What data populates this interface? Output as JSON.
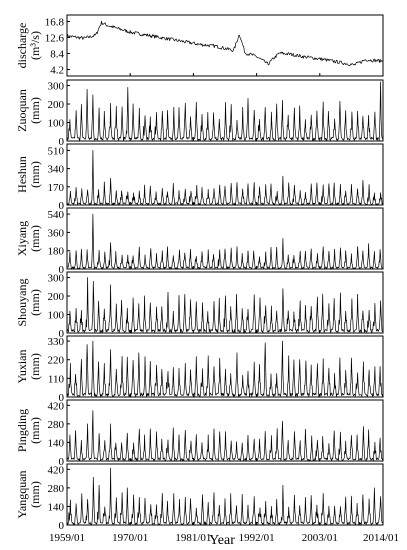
{
  "chart_data": {
    "type": "line",
    "xlabel": "Year",
    "x_range": [
      "1959/01",
      "2014/01"
    ],
    "x_ticks": [
      "1959/01",
      "1970/01",
      "1981/01",
      "1992/01",
      "2003/01",
      "2014/01"
    ],
    "panels": [
      {
        "name": "discharge-panel",
        "ylabel": [
          "discharge",
          "(m³/s)"
        ],
        "yticks": [
          "16.8",
          "12.6",
          "8.4",
          "4.2"
        ],
        "ylim": [
          2.5,
          18.5
        ],
        "approx_series": {
          "kind": "trend",
          "x": [
            1959,
            1962,
            1964,
            1965,
            1966,
            1968,
            1970,
            1973,
            1976,
            1979,
            1982,
            1985,
            1988,
            1989,
            1990,
            1992,
            1994,
            1995,
            1996,
            1998,
            2000,
            2003,
            2006,
            2009,
            2011,
            2014
          ],
          "y": [
            13.0,
            12.4,
            13.2,
            16.5,
            15.8,
            14.9,
            14.0,
            13.2,
            12.4,
            11.6,
            10.8,
            10.3,
            9.2,
            13.5,
            8.6,
            7.6,
            5.6,
            7.2,
            8.5,
            8.2,
            7.6,
            7.0,
            6.2,
            5.4,
            6.8,
            6.4
          ]
        }
      },
      {
        "name": "zuoquan-panel",
        "ylabel": [
          "Zuoquan",
          "(mm)"
        ],
        "yticks": [
          "300",
          "200",
          "100",
          "0"
        ],
        "ylim": [
          0,
          330
        ],
        "approx_series": {
          "kind": "monthly",
          "base_peak": 150,
          "spikes": [
            [
              1962,
              280
            ],
            [
              1963,
              250
            ],
            [
              1969,
              290
            ],
            [
              1981,
              210
            ],
            [
              1990,
              230
            ],
            [
              1996,
              220
            ],
            [
              2013,
              320
            ]
          ]
        }
      },
      {
        "name": "heshun-panel",
        "ylabel": [
          "Heshun",
          "(mm)"
        ],
        "yticks": [
          "510",
          "340",
          "170",
          "0"
        ],
        "ylim": [
          0,
          570
        ],
        "approx_series": {
          "kind": "monthly",
          "base_peak": 150,
          "spikes": [
            [
              1963,
              510
            ],
            [
              1966,
              250
            ],
            [
              1988,
              210
            ],
            [
              1996,
              270
            ],
            [
              2010,
              230
            ]
          ]
        }
      },
      {
        "name": "xiyang-panel",
        "ylabel": [
          "Xiyang",
          "(mm)"
        ],
        "yticks": [
          "540",
          "360",
          "180",
          "0"
        ],
        "ylim": [
          0,
          600
        ],
        "approx_series": {
          "kind": "monthly",
          "base_peak": 160,
          "spikes": [
            [
              1963,
              540
            ],
            [
              1966,
              260
            ],
            [
              1988,
              220
            ],
            [
              1996,
              300
            ],
            [
              2011,
              250
            ]
          ]
        }
      },
      {
        "name": "shouyang-panel",
        "ylabel": [
          "Shouyang",
          "(mm)"
        ],
        "yticks": [
          "300",
          "200",
          "100",
          "0"
        ],
        "ylim": [
          0,
          330
        ],
        "approx_series": {
          "kind": "monthly",
          "base_peak": 150,
          "spikes": [
            [
              1962,
              300
            ],
            [
              1963,
              280
            ],
            [
              1966,
              260
            ],
            [
              1976,
              220
            ],
            [
              1988,
              210
            ],
            [
              1996,
              240
            ],
            [
              2009,
              210
            ]
          ]
        }
      },
      {
        "name": "yuxian-panel",
        "ylabel": [
          "Yuxian",
          "(mm)"
        ],
        "yticks": [
          "330",
          "220",
          "110",
          "0"
        ],
        "ylim": [
          0,
          360
        ],
        "approx_series": {
          "kind": "monthly",
          "base_peak": 170,
          "spikes": [
            [
              1962,
              310
            ],
            [
              1963,
              330
            ],
            [
              1966,
              280
            ],
            [
              1971,
              260
            ],
            [
              1988,
              260
            ],
            [
              1993,
              320
            ],
            [
              1996,
              330
            ]
          ]
        }
      },
      {
        "name": "pingding-panel",
        "ylabel": [
          "Pingding",
          "(mm)"
        ],
        "yticks": [
          "420",
          "280",
          "140",
          "0"
        ],
        "ylim": [
          0,
          460
        ],
        "approx_series": {
          "kind": "monthly",
          "base_peak": 170,
          "spikes": [
            [
              1962,
              280
            ],
            [
              1963,
              380
            ],
            [
              1966,
              280
            ],
            [
              1977,
              250
            ],
            [
              1996,
              300
            ],
            [
              2000,
              240
            ],
            [
              2010,
              260
            ]
          ]
        }
      },
      {
        "name": "yangquan-panel",
        "ylabel": [
          "Yangquan",
          "(mm)"
        ],
        "yticks": [
          "420",
          "280",
          "140",
          "0"
        ],
        "ylim": [
          0,
          460
        ],
        "approx_series": {
          "kind": "monthly",
          "base_peak": 170,
          "spikes": [
            [
              1963,
              360
            ],
            [
              1964,
              300
            ],
            [
              1966,
              430
            ],
            [
              1969,
              280
            ],
            [
              1996,
              300
            ],
            [
              2012,
              280
            ]
          ]
        }
      }
    ]
  }
}
